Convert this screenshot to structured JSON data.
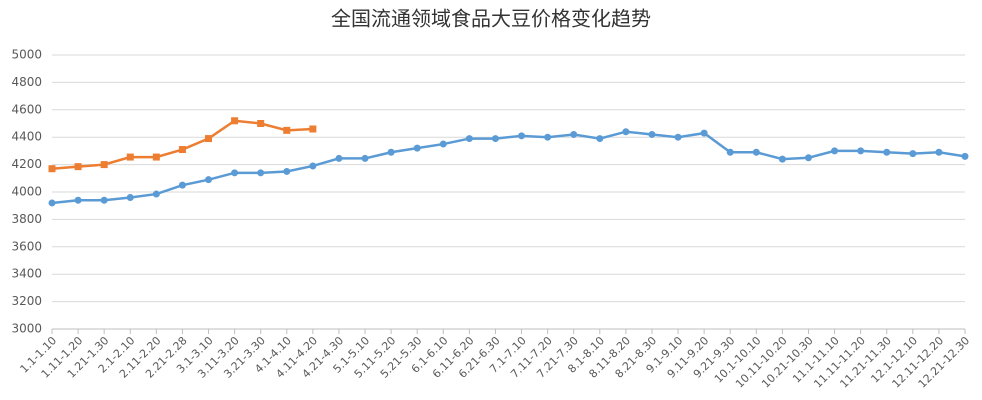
{
  "chart_data": {
    "type": "line",
    "title": "全国流通领域食品大豆价格变化趋势",
    "categories": [
      "1.1-1.10",
      "1.11-1.20",
      "1.21-1.30",
      "2.1-2.10",
      "2.11-2.20",
      "2.21-2.28",
      "3.1-3.10",
      "3.11-3.20",
      "3.21-3.30",
      "4.1-4.10",
      "4.11-4.20",
      "4.21-4.30",
      "5.1-5.10",
      "5.11-5.20",
      "5.21-5.30",
      "6.1-6.10",
      "6.11-6.20",
      "6.21-6.30",
      "7.1-7.10",
      "7.11-7.20",
      "7.21-7.30",
      "8.1-8.10",
      "8.11-8.20",
      "8.21-8.30",
      "9.1-9.10",
      "9.11-9.20",
      "9.21-9.30",
      "10.1-10.10",
      "10.11-10.20",
      "10.21-10.30",
      "11.1-11.10",
      "11.11-11.20",
      "11.21-11.30",
      "12.1-12.10",
      "12.11-12.20",
      "12.21-12.30"
    ],
    "series": [
      {
        "color": "#5b9bd5",
        "marker": "circle",
        "values": [
          3920,
          3940,
          3940,
          3960,
          3985,
          4050,
          4090,
          4140,
          4140,
          4150,
          4190,
          4245,
          4245,
          4290,
          4320,
          4350,
          4390,
          4390,
          4410,
          4400,
          4420,
          4390,
          4440,
          4420,
          4400,
          4430,
          4290,
          4290,
          4240,
          4250,
          4300,
          4300,
          4290,
          4280,
          4290,
          4260
        ]
      },
      {
        "color": "#ed7d31",
        "marker": "square",
        "values": [
          4170,
          4185,
          4200,
          4255,
          4255,
          4310,
          4390,
          4520,
          4500,
          4450,
          4460,
          null,
          null,
          null,
          null,
          null,
          null,
          null,
          null,
          null,
          null,
          null,
          null,
          null,
          null,
          null,
          null,
          null,
          null,
          null,
          null,
          null,
          null,
          null,
          null,
          null
        ]
      }
    ],
    "ylim": [
      3000,
      5000
    ],
    "yticks": [
      3000,
      3200,
      3400,
      3600,
      3800,
      4000,
      4200,
      4400,
      4600,
      4800,
      5000
    ],
    "grid": true
  }
}
